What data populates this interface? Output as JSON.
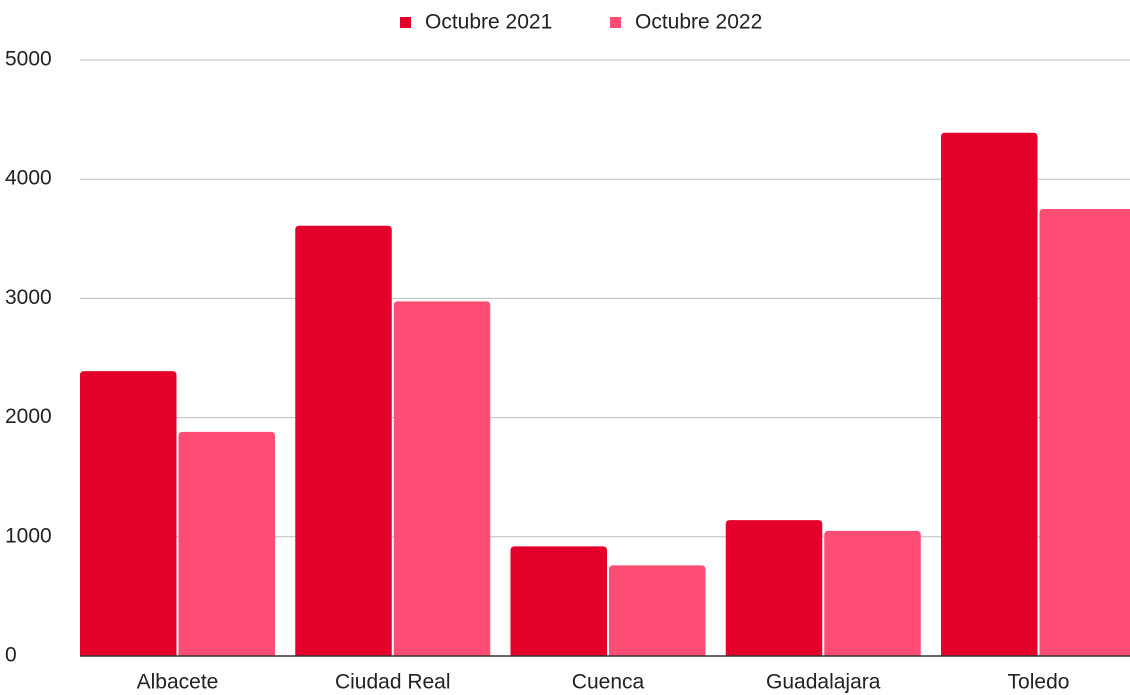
{
  "chart_data": {
    "type": "bar",
    "categories": [
      "Albacete",
      "Ciudad Real",
      "Cuenca",
      "Guadalajara",
      "Toledo"
    ],
    "series": [
      {
        "name": "Octubre 2021",
        "color": "#e4002b",
        "values": [
          2390,
          3610,
          920,
          1140,
          4390
        ]
      },
      {
        "name": "Octubre 2022",
        "color": "#ff4d75",
        "values": [
          1880,
          2975,
          760,
          1050,
          3750
        ]
      }
    ],
    "ylim": [
      0,
      5000
    ],
    "yticks": [
      0,
      1000,
      2000,
      3000,
      4000,
      5000
    ],
    "grid": true,
    "legend": "top"
  }
}
